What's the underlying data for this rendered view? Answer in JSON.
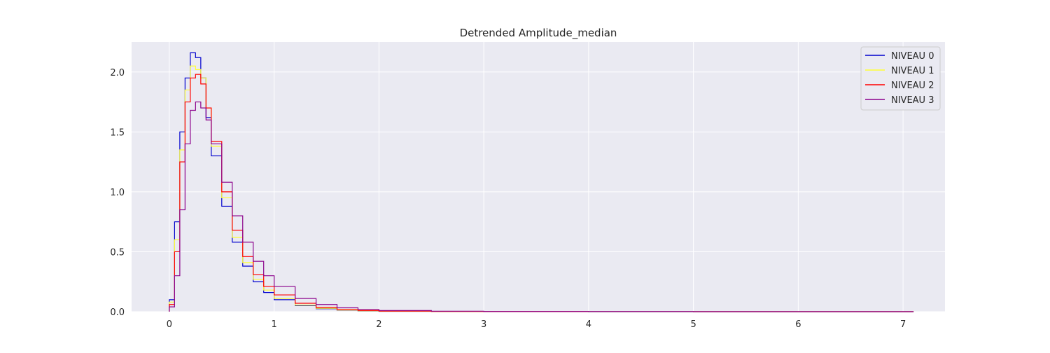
{
  "chart_data": {
    "type": "line",
    "subtype": "step-histogram",
    "title": "Detrended Amplitude_median",
    "xlabel": "",
    "ylabel": "",
    "xlim": [
      -0.36,
      7.4
    ],
    "ylim": [
      0,
      2.25
    ],
    "xticks": [
      0,
      1,
      2,
      3,
      4,
      5,
      6,
      7
    ],
    "yticks": [
      0.0,
      0.5,
      1.0,
      1.5,
      2.0
    ],
    "xtick_labels": [
      "0",
      "1",
      "2",
      "3",
      "4",
      "5",
      "6",
      "7"
    ],
    "ytick_labels": [
      "0.0",
      "0.5",
      "1.0",
      "1.5",
      "2.0"
    ],
    "grid": true,
    "background": "#eaeaf2",
    "legend_position": "top-right",
    "series": [
      {
        "name": "NIVEAU 0",
        "color": "#0000cd",
        "x": [
          0.0,
          0.05,
          0.1,
          0.15,
          0.2,
          0.25,
          0.3,
          0.35,
          0.4,
          0.5,
          0.6,
          0.7,
          0.8,
          0.9,
          1.0,
          1.2,
          1.4,
          1.6,
          1.8,
          2.0,
          2.5,
          3.0,
          4.0,
          5.0,
          6.0,
          7.0,
          7.1
        ],
        "y": [
          0.1,
          0.75,
          1.5,
          1.95,
          2.16,
          2.12,
          1.95,
          1.62,
          1.3,
          0.88,
          0.58,
          0.38,
          0.25,
          0.16,
          0.1,
          0.05,
          0.025,
          0.012,
          0.006,
          0.003,
          0.001,
          0.0005,
          0.0002,
          0.0001,
          0.0,
          0.0,
          0.0
        ]
      },
      {
        "name": "NIVEAU 1",
        "color": "#ffff33",
        "x": [
          0.0,
          0.05,
          0.1,
          0.15,
          0.2,
          0.25,
          0.3,
          0.35,
          0.4,
          0.5,
          0.6,
          0.7,
          0.8,
          0.9,
          1.0,
          1.2,
          1.4,
          1.6,
          1.8,
          2.0,
          2.5,
          3.0,
          4.0,
          5.0,
          6.0,
          7.0,
          7.1
        ],
        "y": [
          0.08,
          0.6,
          1.35,
          1.85,
          2.05,
          2.02,
          1.95,
          1.7,
          1.38,
          0.95,
          0.62,
          0.41,
          0.27,
          0.18,
          0.11,
          0.055,
          0.028,
          0.014,
          0.007,
          0.004,
          0.0015,
          0.0006,
          0.0002,
          0.0001,
          0.0,
          0.0,
          0.0
        ]
      },
      {
        "name": "NIVEAU 2",
        "color": "#ff0000",
        "x": [
          0.0,
          0.05,
          0.1,
          0.15,
          0.2,
          0.25,
          0.3,
          0.35,
          0.4,
          0.5,
          0.6,
          0.7,
          0.8,
          0.9,
          1.0,
          1.2,
          1.4,
          1.6,
          1.8,
          2.0,
          2.5,
          3.0,
          4.0,
          5.0,
          6.0,
          7.0,
          7.1
        ],
        "y": [
          0.06,
          0.5,
          1.25,
          1.75,
          1.95,
          1.98,
          1.9,
          1.7,
          1.42,
          1.0,
          0.68,
          0.46,
          0.31,
          0.21,
          0.14,
          0.07,
          0.035,
          0.018,
          0.01,
          0.005,
          0.002,
          0.0008,
          0.0003,
          0.0001,
          0.0,
          0.0,
          0.0
        ]
      },
      {
        "name": "NIVEAU 3",
        "color": "#8b008b",
        "x": [
          0.0,
          0.05,
          0.1,
          0.15,
          0.2,
          0.25,
          0.3,
          0.35,
          0.4,
          0.5,
          0.6,
          0.7,
          0.8,
          0.9,
          1.0,
          1.2,
          1.4,
          1.6,
          1.8,
          2.0,
          2.5,
          3.0,
          4.0,
          5.0,
          6.0,
          7.0,
          7.1
        ],
        "y": [
          0.04,
          0.3,
          0.85,
          1.4,
          1.68,
          1.75,
          1.7,
          1.6,
          1.4,
          1.08,
          0.8,
          0.58,
          0.42,
          0.3,
          0.21,
          0.11,
          0.06,
          0.032,
          0.018,
          0.01,
          0.004,
          0.0015,
          0.0005,
          0.0002,
          0.0001,
          0.0,
          0.0
        ]
      }
    ]
  }
}
